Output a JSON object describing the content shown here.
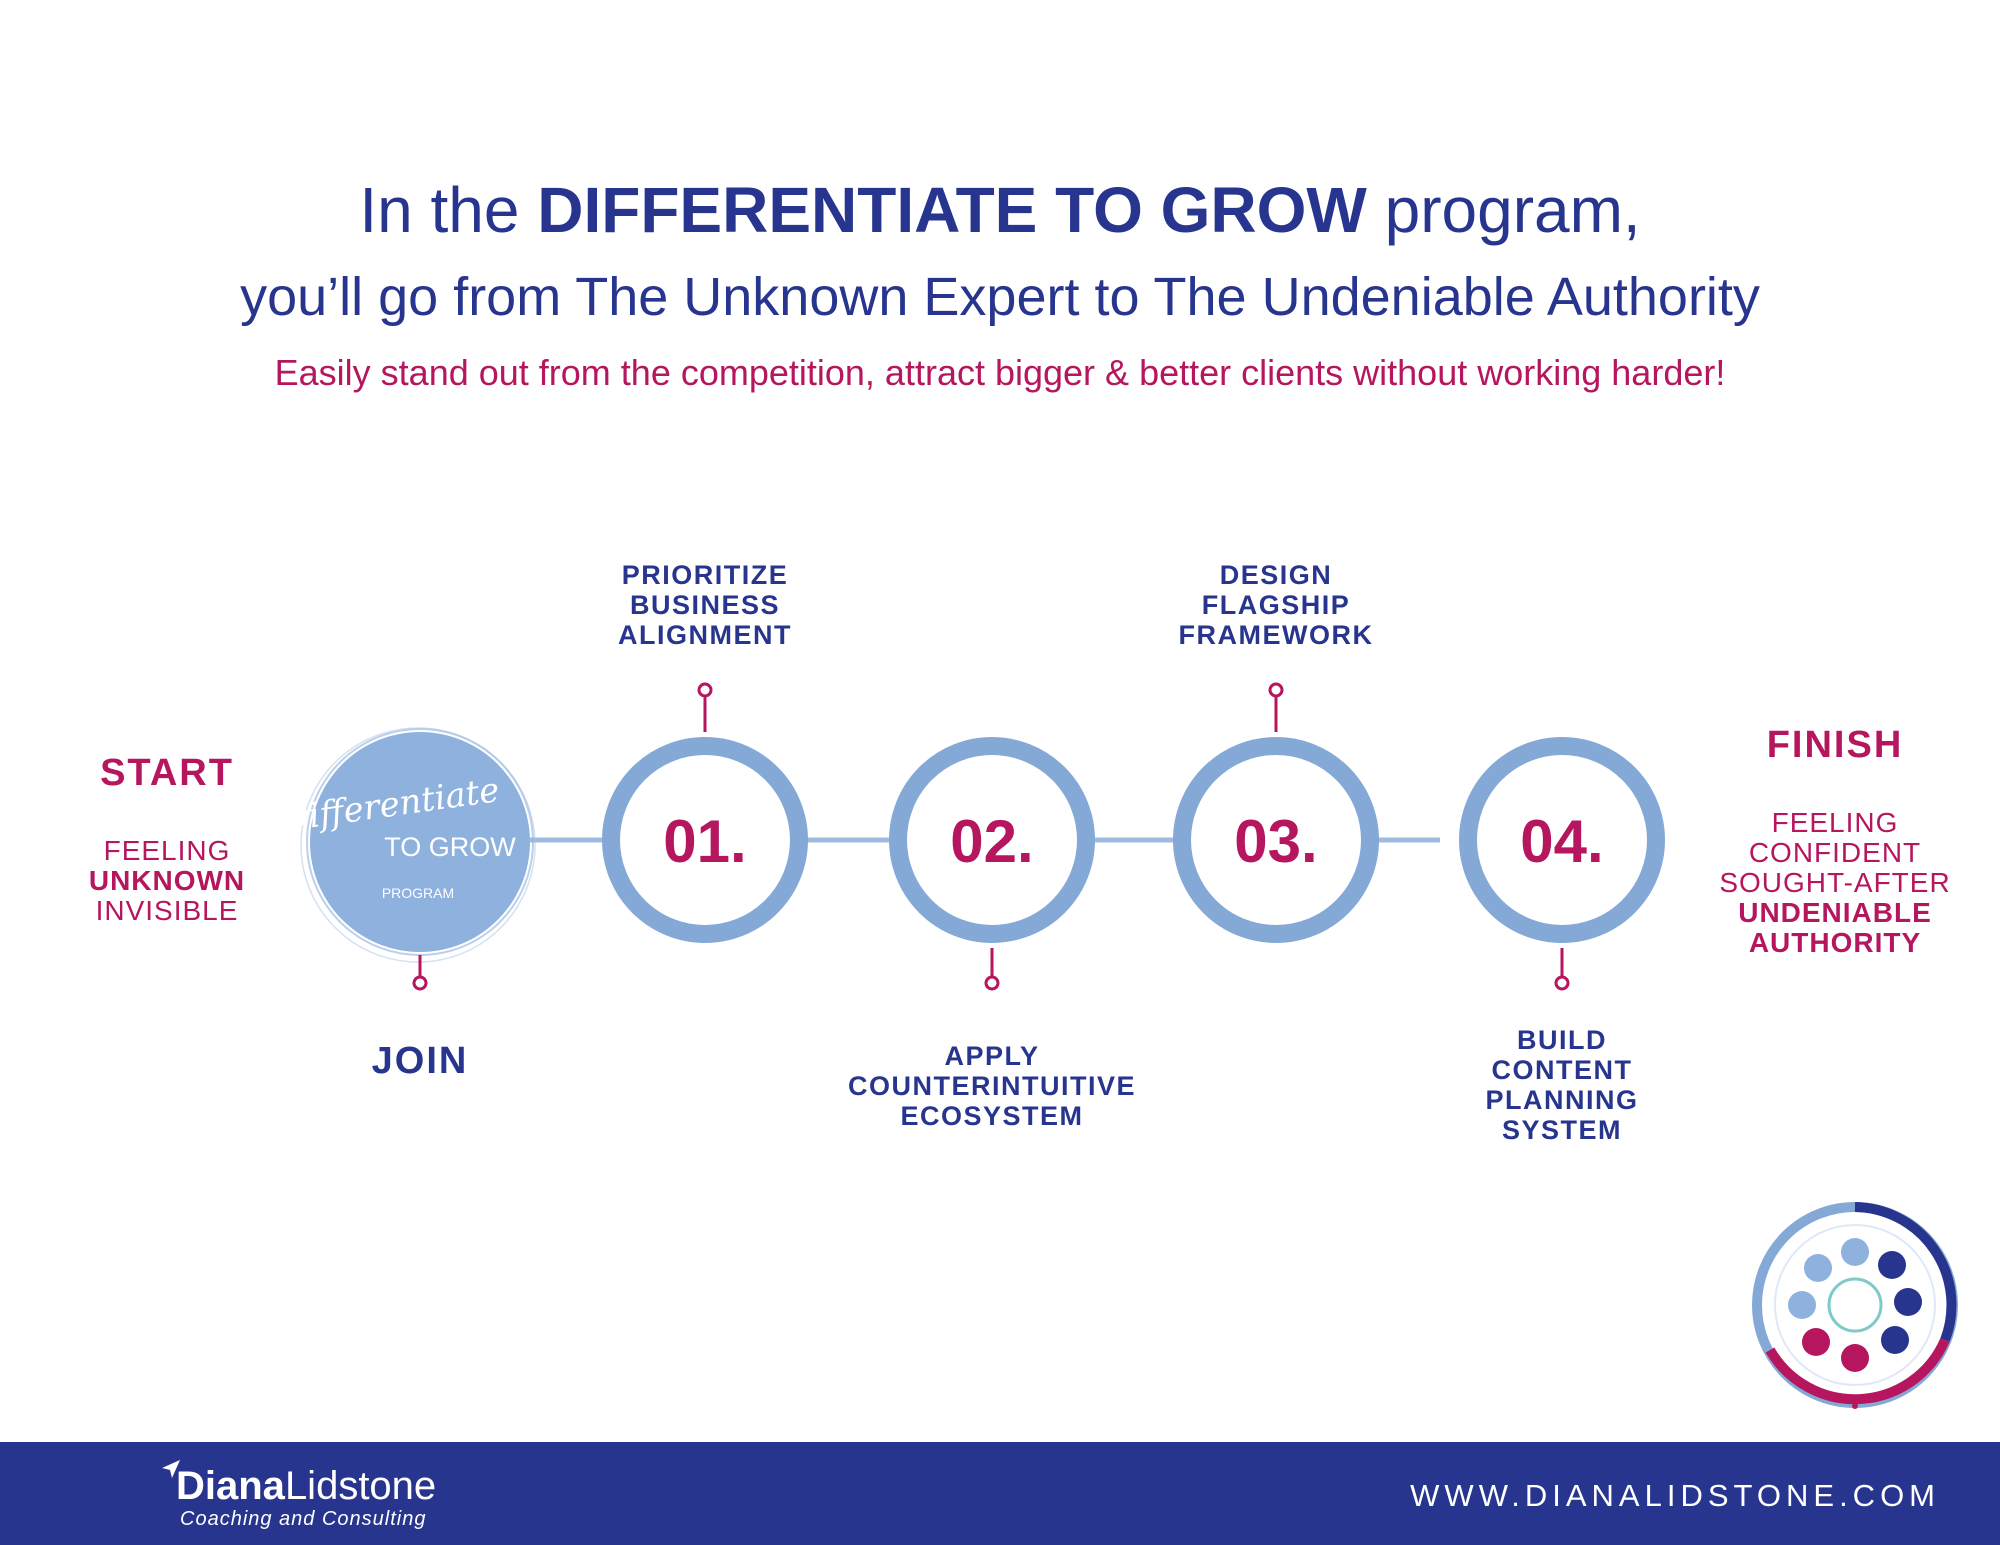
{
  "headline": {
    "line1_prefix": "In the ",
    "line1_bold": "DIFFERENTIATE TO GROW",
    "line1_suffix": " program,",
    "line2": "you’ll go from The Unknown Expert to The Undeniable Authority",
    "line3": "Easily stand out from the competition, attract bigger & better clients without working harder!"
  },
  "start": {
    "title": "START",
    "line1": "FEELING",
    "line2": "UNKNOWN",
    "line3": "INVISIBLE"
  },
  "join_badge": {
    "script": "Differentiate",
    "title": "TO GROW",
    "sub": "PROGRAM",
    "label": "JOIN"
  },
  "steps": [
    {
      "number": "01.",
      "label_lines": [
        "PRIORITIZE",
        "BUSINESS",
        "ALIGNMENT"
      ]
    },
    {
      "number": "02.",
      "label_lines": [
        "APPLY",
        "COUNTERINTUITIVE",
        "ECOSYSTEM"
      ]
    },
    {
      "number": "03.",
      "label_lines": [
        "DESIGN",
        "FLAGSHIP",
        "FRAMEWORK"
      ]
    },
    {
      "number": "04.",
      "label_lines": [
        "BUILD",
        "CONTENT",
        "PLANNING",
        "SYSTEM"
      ]
    }
  ],
  "finish": {
    "title": "FINISH",
    "line1": "FEELING",
    "line2": "CONFIDENT",
    "line3": "SOUGHT-AFTER",
    "line4": "UNDENIABLE",
    "line5": "AUTHORITY"
  },
  "footer": {
    "logo_first": "Diana",
    "logo_last": "Lidstone",
    "logo_tagline": "Coaching and Consulting",
    "url": "WWW.DIANALIDSTONE.COM"
  },
  "colors": {
    "navy": "#27358f",
    "magenta": "#b5165e",
    "ring": "#85a9d6",
    "badge": "#8fb1de",
    "connector": "#9fbbe0"
  },
  "icons": [
    "logo-arrow-icon",
    "grow-equation-wheel-icon"
  ]
}
